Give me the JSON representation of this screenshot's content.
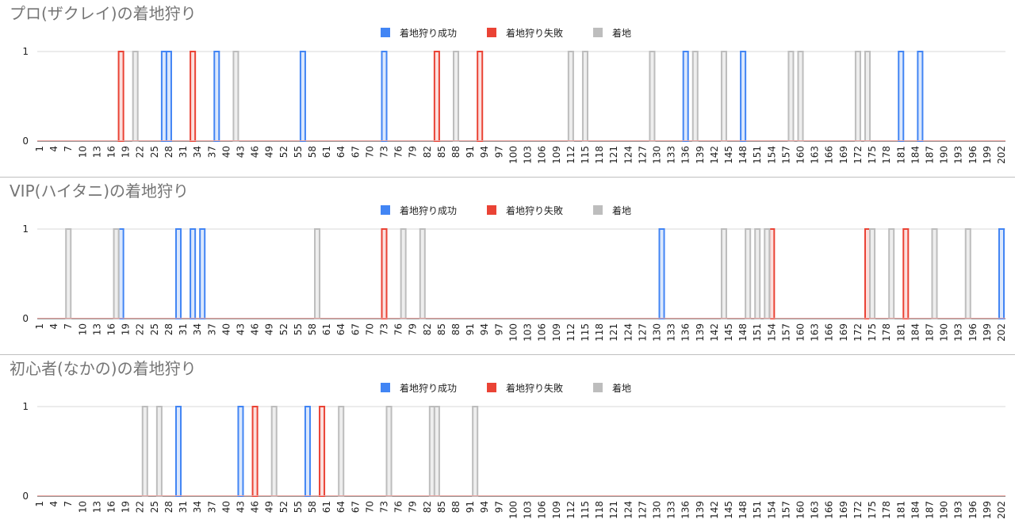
{
  "chart_data": [
    {
      "type": "area",
      "title": "プロ(ザクレイ)の着地狩り",
      "legend": {
        "placement": "top-center",
        "entries": [
          {
            "name": "着地狩り成功",
            "color": "#4285f4"
          },
          {
            "name": "着地狩り失敗",
            "color": "#ea4335"
          },
          {
            "name": "着地",
            "color": "#bdbdbd"
          }
        ]
      },
      "x_range": [
        1,
        202
      ],
      "x_tick_step": 3,
      "ylim": [
        0,
        1
      ],
      "y_ticks": [
        0,
        1
      ],
      "grid": true,
      "series": [
        {
          "name": "着地狩り成功",
          "color": "#4285f4",
          "x_at_1": [
            27,
            28,
            38,
            56,
            73,
            136,
            148,
            181,
            185
          ]
        },
        {
          "name": "着地狩り失敗",
          "color": "#ea4335",
          "x_at_1": [
            18,
            33,
            84,
            93
          ]
        },
        {
          "name": "着地",
          "color": "#bdbdbd",
          "x_at_1": [
            21,
            42,
            88,
            112,
            115,
            129,
            138,
            144,
            158,
            160,
            172,
            174
          ]
        }
      ]
    },
    {
      "type": "area",
      "title": "VIP(ハイタニ)の着地狩り",
      "legend": {
        "placement": "top-center",
        "entries": [
          {
            "name": "着地狩り成功",
            "color": "#4285f4"
          },
          {
            "name": "着地狩り失敗",
            "color": "#ea4335"
          },
          {
            "name": "着地",
            "color": "#bdbdbd"
          }
        ]
      },
      "x_range": [
        1,
        202
      ],
      "x_tick_step": 3,
      "ylim": [
        0,
        1
      ],
      "y_ticks": [
        0,
        1
      ],
      "grid": true,
      "series": [
        {
          "name": "着地狩り成功",
          "color": "#4285f4",
          "x_at_1": [
            18,
            30,
            33,
            35,
            131,
            202
          ]
        },
        {
          "name": "着地狩り失敗",
          "color": "#ea4335",
          "x_at_1": [
            73,
            154,
            174,
            182
          ]
        },
        {
          "name": "着地",
          "color": "#bdbdbd",
          "x_at_1": [
            7,
            17,
            59,
            77,
            81,
            144,
            149,
            151,
            153,
            175,
            179,
            188,
            195
          ]
        }
      ]
    },
    {
      "type": "area",
      "title": "初心者(なかの)の着地狩り",
      "legend": {
        "placement": "top-center",
        "entries": [
          {
            "name": "着地狩り成功",
            "color": "#4285f4"
          },
          {
            "name": "着地狩り失敗",
            "color": "#ea4335"
          },
          {
            "name": "着地",
            "color": "#bdbdbd"
          }
        ]
      },
      "x_range": [
        1,
        202
      ],
      "x_tick_step": 3,
      "ylim": [
        0,
        1
      ],
      "y_ticks": [
        0,
        1
      ],
      "grid": true,
      "series": [
        {
          "name": "着地狩り成功",
          "color": "#4285f4",
          "x_at_1": [
            30,
            43,
            57
          ]
        },
        {
          "name": "着地狩り失敗",
          "color": "#ea4335",
          "x_at_1": [
            46,
            60
          ]
        },
        {
          "name": "着地",
          "color": "#bdbdbd",
          "x_at_1": [
            23,
            26,
            50,
            64,
            74,
            83,
            84,
            92
          ]
        }
      ]
    }
  ]
}
